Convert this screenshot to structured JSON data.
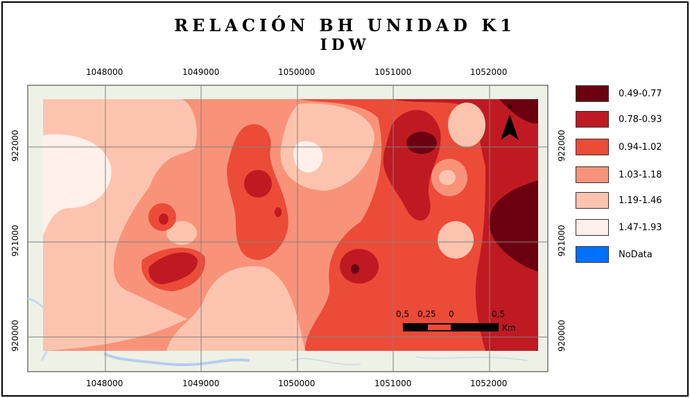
{
  "title": {
    "line1": "RELACIÓN BH UNIDAD K1",
    "line2": "IDW"
  },
  "x_ticks": [
    "1048000",
    "1049000",
    "1050000",
    "1051000",
    "1052000"
  ],
  "y_ticks": [
    "922000",
    "921000",
    "920000"
  ],
  "legend": [
    {
      "label": "0.49-0.77",
      "color": "#6b0011"
    },
    {
      "label": "0.78-0.93",
      "color": "#bf1a22"
    },
    {
      "label": "0.94-1.02",
      "color": "#ec4b38"
    },
    {
      "label": "1.03-1.18",
      "color": "#f8937a"
    },
    {
      "label": "1.19-1.46",
      "color": "#fcc4ae"
    },
    {
      "label": "1.47-1.93",
      "color": "#fff0ea"
    },
    {
      "label": "NoData",
      "color": "#0070ff"
    }
  ],
  "scalebar": {
    "labels": [
      "0,5",
      "0,25",
      "0",
      "0,5"
    ],
    "unit": "Km"
  },
  "north_label": "N"
}
